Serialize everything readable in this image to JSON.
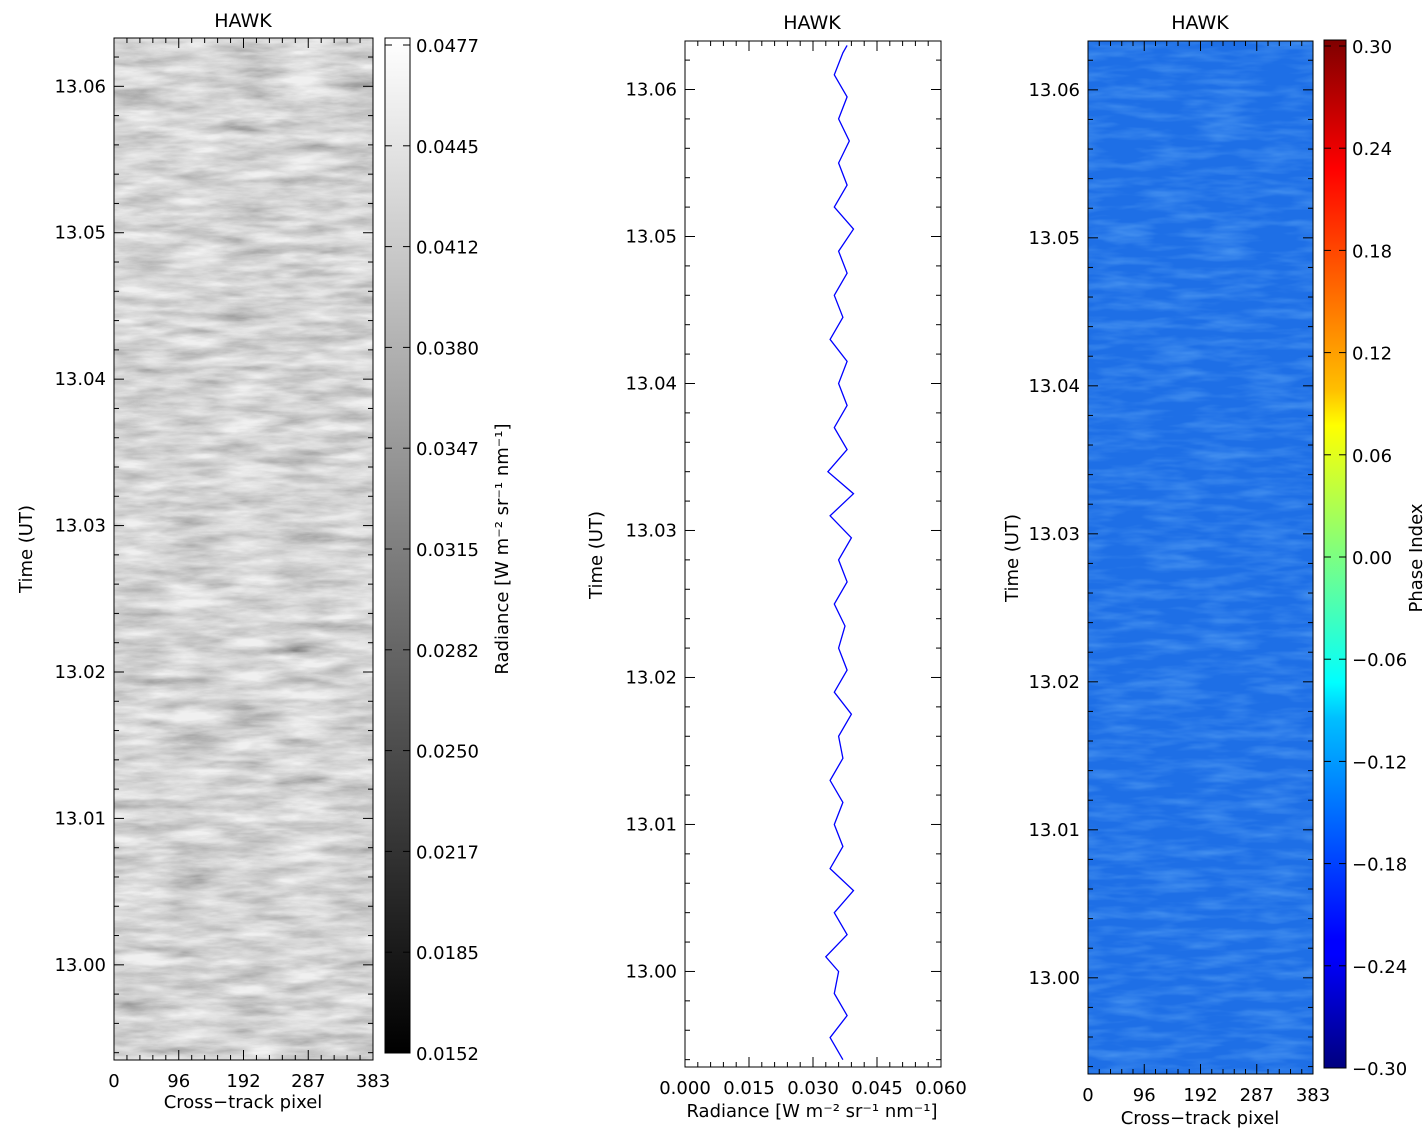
{
  "chart_data": [
    {
      "type": "heatmap",
      "title": "HAWK",
      "xlabel": "Cross−track pixel",
      "ylabel": "Time (UT)",
      "xticks": [
        "0",
        "96",
        "192",
        "287",
        "383"
      ],
      "yticks": [
        "13.00",
        "13.01",
        "13.02",
        "13.03",
        "13.04",
        "13.05",
        "13.06"
      ],
      "xlim": [
        0,
        383
      ],
      "ylim": [
        12.9935,
        13.0633
      ],
      "colormap": "grayscale",
      "colorbar": {
        "label": "Radiance [W m⁻² sr⁻¹ nm⁻¹]",
        "ticks": [
          "0.0152",
          "0.0185",
          "0.0217",
          "0.0250",
          "0.0282",
          "0.0315",
          "0.0347",
          "0.0380",
          "0.0412",
          "0.0445",
          "0.0477"
        ],
        "range": [
          0.0152,
          0.0477
        ]
      }
    },
    {
      "type": "line",
      "title": "HAWK",
      "xlabel": "Radiance [W m⁻² sr⁻¹ nm⁻¹]",
      "ylabel": "Time (UT)",
      "xticks": [
        "0.000",
        "0.015",
        "0.030",
        "0.045",
        "0.060"
      ],
      "yticks": [
        "13.00",
        "13.01",
        "13.02",
        "13.03",
        "13.04",
        "13.05",
        "13.06"
      ],
      "xlim": [
        0.0,
        0.06
      ],
      "ylim": [
        12.9935,
        13.0633
      ],
      "color": "#0000ff",
      "series": [
        {
          "time": [
            12.994,
            12.9955,
            12.997,
            12.9985,
            13.0,
            13.001,
            13.0025,
            13.004,
            13.0055,
            13.007,
            13.0085,
            13.01,
            13.0115,
            13.013,
            13.0145,
            13.016,
            13.0175,
            13.019,
            13.0205,
            13.022,
            13.0235,
            13.025,
            13.0265,
            13.028,
            13.0295,
            13.031,
            13.0325,
            13.034,
            13.0355,
            13.037,
            13.0385,
            13.04,
            13.0415,
            13.043,
            13.0445,
            13.046,
            13.0475,
            13.049,
            13.0505,
            13.052,
            13.0535,
            13.055,
            13.0565,
            13.058,
            13.0595,
            13.061,
            13.0625,
            13.063
          ],
          "radiance": [
            0.037,
            0.034,
            0.038,
            0.035,
            0.036,
            0.033,
            0.038,
            0.035,
            0.0395,
            0.034,
            0.037,
            0.035,
            0.037,
            0.034,
            0.037,
            0.036,
            0.039,
            0.035,
            0.038,
            0.036,
            0.0375,
            0.035,
            0.038,
            0.036,
            0.039,
            0.034,
            0.0395,
            0.0335,
            0.038,
            0.035,
            0.038,
            0.036,
            0.038,
            0.034,
            0.037,
            0.035,
            0.038,
            0.036,
            0.0395,
            0.035,
            0.038,
            0.036,
            0.0385,
            0.036,
            0.038,
            0.035,
            0.037,
            0.038
          ]
        }
      ]
    },
    {
      "type": "heatmap",
      "title": "HAWK",
      "xlabel": "Cross−track pixel",
      "ylabel": "Time (UT)",
      "xticks": [
        "0",
        "96",
        "192",
        "287",
        "383"
      ],
      "yticks": [
        "13.00",
        "13.01",
        "13.02",
        "13.03",
        "13.04",
        "13.05",
        "13.06"
      ],
      "xlim": [
        0,
        383
      ],
      "ylim": [
        12.9935,
        13.0633
      ],
      "colormap": "jet",
      "colorbar": {
        "label": "Phase Index",
        "ticks": [
          "−0.30",
          "−0.24",
          "−0.18",
          "−0.12",
          "−0.06",
          "0.00",
          "0.06",
          "0.12",
          "0.18",
          "0.24",
          "0.30"
        ],
        "range": [
          -0.3,
          0.3
        ]
      }
    }
  ]
}
